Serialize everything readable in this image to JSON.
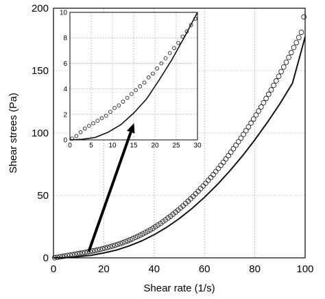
{
  "chart_data": [
    {
      "type": "scatter",
      "xlabel": "Shear rate (1/s)",
      "ylabel": "Shear strees (Pa)",
      "xlim": [
        0,
        100
      ],
      "ylim": [
        0,
        200
      ],
      "xticks": [
        0,
        20,
        40,
        60,
        80,
        100
      ],
      "yticks": [
        0,
        50,
        100,
        150,
        200
      ],
      "grid": true,
      "series": [
        {
          "kind": "markers",
          "marker": "open-circle",
          "x": [
            0.5,
            1.5,
            2.5,
            3.5,
            4.5,
            5.5,
            6.5,
            7.5,
            8.5,
            9.5,
            10.5,
            11.5,
            12.5,
            13.5,
            14.5,
            15.5,
            16.5,
            17.5,
            18.5,
            19.5,
            20.5,
            21.5,
            22.5,
            23.5,
            24.5,
            25.5,
            26.5,
            27.5,
            28.5,
            29.5,
            30.5,
            31.5,
            32.5,
            33.5,
            34.5,
            35.5,
            36.5,
            37.5,
            38.5,
            39.5,
            40.5,
            41.5,
            42.5,
            43.5,
            44.5,
            45.5,
            46.5,
            47.5,
            48.5,
            49.5,
            50.5,
            51.5,
            52.5,
            53.5,
            54.5,
            55.5,
            56.5,
            57.5,
            58.5,
            59.5,
            60.5,
            61.5,
            62.5,
            63.5,
            64.5,
            65.5,
            66.5,
            67.5,
            68.5,
            69.5,
            70.5,
            71.5,
            72.5,
            73.5,
            74.5,
            75.5,
            76.5,
            77.5,
            78.5,
            79.5,
            80.5,
            81.5,
            82.5,
            83.5,
            84.5,
            85.5,
            86.5,
            87.5,
            88.5,
            89.5,
            90.5,
            91.5,
            92.5,
            93.5,
            94.5,
            95.5,
            96.5,
            97.5,
            98.5,
            99.5
          ],
          "y": [
            0.1,
            0.4,
            0.8,
            1.1,
            1.5,
            1.9,
            2.2,
            2.6,
            2.9,
            3.3,
            3.6,
            3.9,
            4.3,
            4.7,
            5.1,
            5.5,
            5.9,
            6.3,
            6.8,
            7.3,
            7.8,
            8.3,
            8.9,
            9.5,
            10.1,
            10.8,
            11.4,
            12.2,
            12.9,
            13.7,
            14.5,
            15.4,
            16.3,
            17.2,
            18.2,
            19.2,
            20.3,
            21.4,
            22.5,
            23.7,
            25.0,
            26.3,
            27.6,
            29.0,
            30.4,
            31.9,
            33.4,
            35.0,
            36.6,
            38.3,
            40.0,
            41.7,
            43.6,
            45.4,
            47.3,
            49.3,
            51.3,
            53.3,
            55.5,
            57.6,
            59.8,
            62.1,
            64.4,
            66.7,
            69.1,
            71.6,
            74.1,
            76.6,
            79.2,
            81.9,
            84.6,
            87.4,
            90.2,
            93.0,
            95.9,
            98.9,
            101.9,
            104.9,
            108.0,
            111.2,
            114.4,
            117.6,
            120.9,
            124.3,
            127.7,
            131.1,
            134.6,
            138.2,
            141.8,
            145.5,
            149.2,
            152.9,
            156.7,
            160.6,
            164.5,
            168.5,
            172.5,
            176.6,
            180.7,
            193.0
          ],
          "noise": [
            0,
            0,
            0,
            0,
            0,
            0,
            0,
            0,
            0,
            0,
            0,
            0,
            0,
            0,
            0,
            0,
            0,
            0,
            0,
            0,
            0,
            0,
            0,
            0,
            0,
            0,
            0,
            0,
            0,
            0,
            0,
            0,
            0,
            0,
            0,
            0,
            0,
            0,
            0,
            0,
            0,
            0,
            0,
            0,
            0,
            0,
            0,
            0,
            0,
            0,
            0,
            0,
            0,
            0,
            0,
            0,
            0,
            0,
            0,
            0,
            0,
            0,
            0,
            0,
            0,
            0,
            0,
            0,
            0,
            0,
            0,
            0,
            0,
            0,
            0,
            0,
            0,
            0,
            0,
            0,
            0,
            0,
            0,
            0,
            0,
            0,
            0,
            0,
            0,
            0,
            0,
            0,
            0,
            0,
            0,
            0,
            0,
            0,
            0,
            0
          ]
        },
        {
          "kind": "line",
          "x": [
            0,
            5,
            10,
            15,
            20,
            25,
            30,
            35,
            40,
            45,
            50,
            55,
            60,
            65,
            70,
            75,
            80,
            85,
            90,
            95,
            100
          ],
          "y": [
            0,
            0.3,
            1.0,
            2.1,
            3.9,
            6.2,
            9.5,
            13.5,
            18.5,
            24.5,
            31.5,
            39.5,
            48.5,
            58.5,
            69.5,
            81.5,
            94.5,
            108.5,
            123.5,
            140.0,
            177.0
          ]
        }
      ],
      "annotations": [
        {
          "type": "arrow",
          "from": [
            14,
            5
          ],
          "to": [
            32,
            108
          ]
        }
      ]
    },
    {
      "type": "scatter",
      "xlim": [
        0,
        30
      ],
      "ylim": [
        0,
        10
      ],
      "xticks": [
        0,
        5,
        10,
        15,
        20,
        25,
        30
      ],
      "yticks": [
        0,
        2,
        4,
        6,
        8,
        10
      ],
      "grid": true,
      "series": [
        {
          "kind": "markers",
          "marker": "open-circle",
          "x": [
            0.5,
            1.5,
            2.5,
            3.5,
            4.5,
            5.5,
            6.5,
            7.5,
            8.5,
            9.5,
            10.5,
            11.5,
            12.5,
            13.5,
            14.5,
            15.5,
            16.5,
            17.5,
            18.5,
            19.5,
            20.5,
            21.5,
            22.5,
            23.5,
            24.5,
            25.5,
            26.5,
            27.5,
            28.5,
            29.5
          ],
          "y": [
            0.1,
            0.3,
            0.6,
            0.9,
            1.1,
            1.3,
            1.5,
            1.7,
            1.9,
            2.2,
            2.5,
            2.7,
            3.0,
            3.3,
            3.6,
            3.9,
            4.2,
            4.5,
            4.9,
            5.2,
            5.6,
            6.0,
            6.4,
            6.8,
            7.2,
            7.6,
            8.1,
            8.5,
            9.0,
            9.5
          ]
        },
        {
          "kind": "line",
          "x": [
            0,
            3,
            6,
            9,
            12,
            15,
            18,
            21,
            24,
            27,
            30
          ],
          "y": [
            0,
            0.05,
            0.2,
            0.6,
            1.2,
            2.1,
            3.2,
            4.7,
            6.3,
            8.1,
            10.0
          ]
        }
      ]
    }
  ]
}
